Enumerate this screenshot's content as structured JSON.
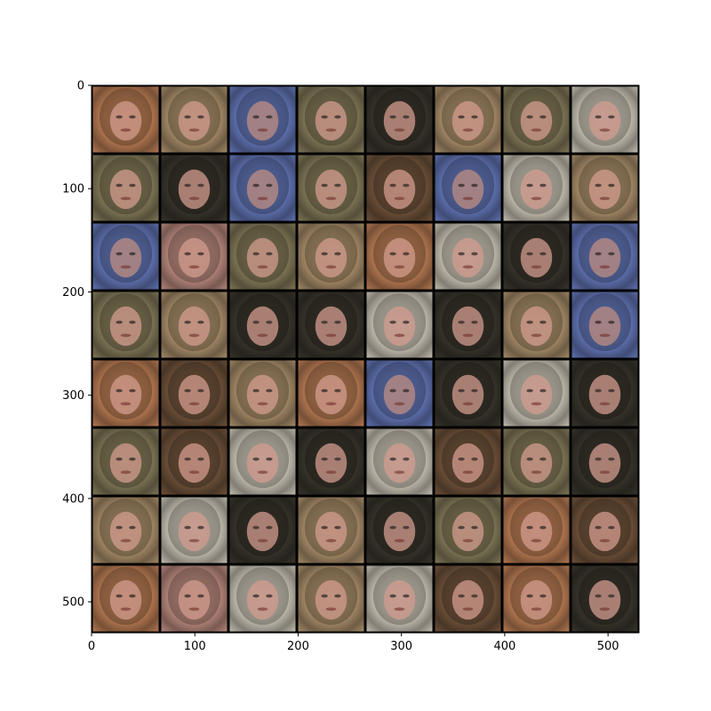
{
  "image_grid": {
    "rows": 8,
    "cols": 8,
    "subject": "generated face samples",
    "x_extent": [
      0,
      530
    ],
    "y_extent": [
      0,
      530
    ],
    "separator_color": "#000000",
    "background_color": "#ffffff",
    "palette": {
      "orange": "#c8865a",
      "tan": "#b79a73",
      "blue": "#6a7fc4",
      "olive": "#8d8460",
      "dark": "#3e3a30",
      "light": "#d8d2c3",
      "pink": "#c99588",
      "brown": "#7a5a3f"
    },
    "tile_styles": [
      [
        "orange",
        "tan",
        "blue",
        "olive",
        "dark",
        "tan",
        "olive",
        "light"
      ],
      [
        "olive",
        "dark",
        "blue",
        "olive",
        "brown",
        "blue",
        "light",
        "tan"
      ],
      [
        "blue",
        "pink",
        "olive",
        "tan",
        "orange",
        "light",
        "dark",
        "blue"
      ],
      [
        "olive",
        "tan",
        "dark",
        "dark",
        "light",
        "dark",
        "tan",
        "blue"
      ],
      [
        "orange",
        "brown",
        "tan",
        "orange",
        "blue",
        "dark",
        "light",
        "dark"
      ],
      [
        "olive",
        "brown",
        "light",
        "dark",
        "light",
        "brown",
        "olive",
        "dark"
      ],
      [
        "tan",
        "light",
        "dark",
        "tan",
        "dark",
        "olive",
        "orange",
        "brown"
      ],
      [
        "orange",
        "pink",
        "light",
        "tan",
        "light",
        "brown",
        "orange",
        "dark"
      ]
    ]
  },
  "axes": {
    "x_ticks": [
      "0",
      "100",
      "200",
      "300",
      "400",
      "500"
    ],
    "x_tick_values": [
      0,
      100,
      200,
      300,
      400,
      500
    ],
    "y_ticks": [
      "0",
      "100",
      "200",
      "300",
      "400",
      "500"
    ],
    "y_tick_values": [
      0,
      100,
      200,
      300,
      400,
      500
    ]
  }
}
